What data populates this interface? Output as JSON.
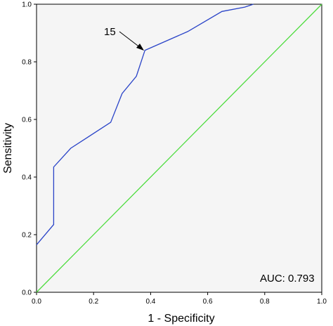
{
  "chart_data": {
    "type": "line",
    "xlabel": "1 - Specificity",
    "ylabel": "Sensitivity",
    "xlim": [
      0.0,
      1.0
    ],
    "ylim": [
      0.0,
      1.0
    ],
    "x_ticks": [
      "0.0",
      "0.2",
      "0.4",
      "0.6",
      "0.8",
      "1.0"
    ],
    "y_ticks": [
      "0.0",
      "0.2",
      "0.4",
      "0.6",
      "0.8",
      "1.0"
    ],
    "grid": false,
    "background": "#f5f5f5",
    "series": [
      {
        "color": "#2a44c8",
        "x": [
          0.0,
          0.06,
          0.06,
          0.12,
          0.26,
          0.3,
          0.35,
          0.38,
          0.53,
          0.65,
          0.73,
          0.76
        ],
        "y": [
          0.165,
          0.235,
          0.435,
          0.5,
          0.59,
          0.69,
          0.75,
          0.84,
          0.905,
          0.975,
          0.99,
          1.0
        ]
      },
      {
        "color": "#4cdc3c",
        "x": [
          0.0,
          1.0
        ],
        "y": [
          0.0,
          1.0
        ]
      }
    ],
    "annotations": [
      {
        "text": "15",
        "point": [
          0.38,
          0.84
        ],
        "arrow": true
      },
      {
        "text": "AUC: 0.793"
      }
    ]
  }
}
